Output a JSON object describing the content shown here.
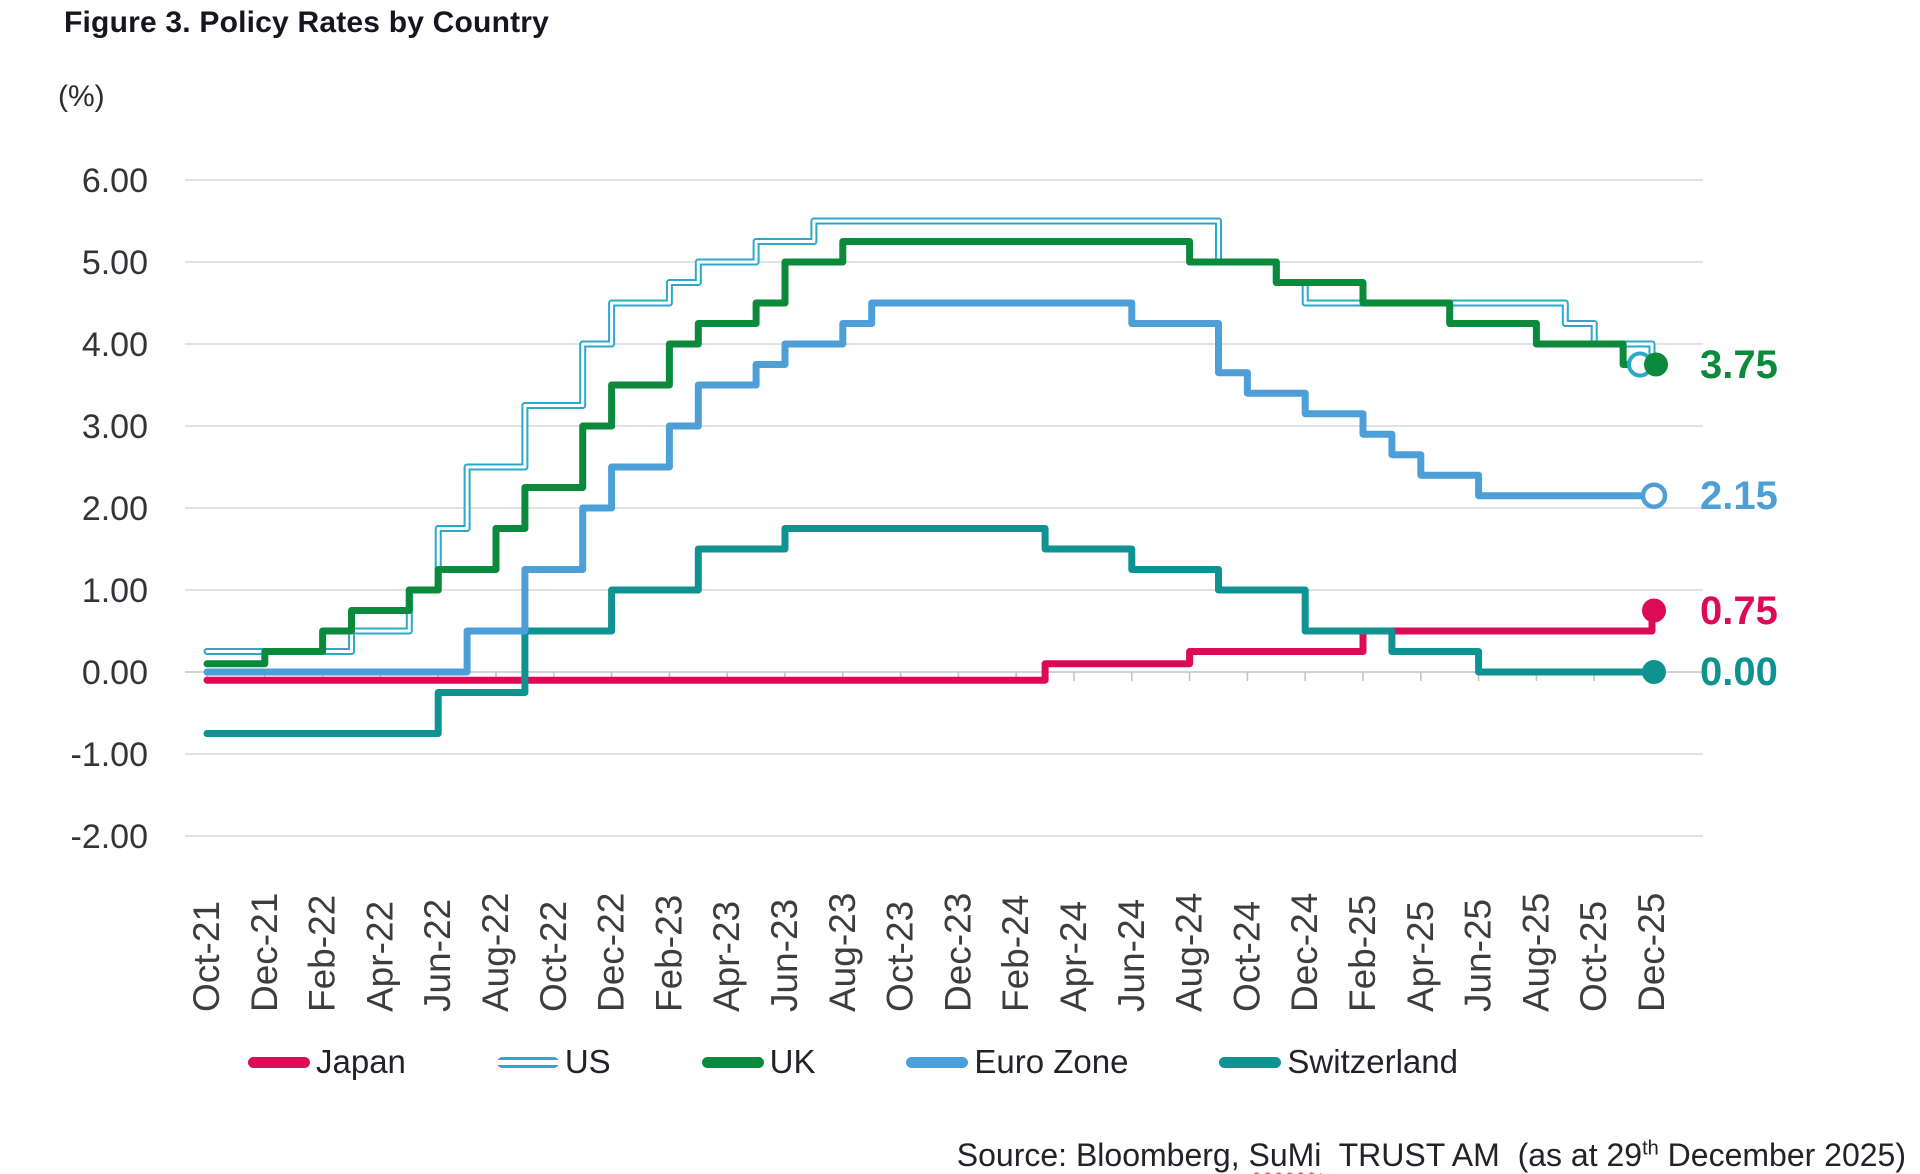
{
  "title": "Figure 3. Policy Rates by Country",
  "y_axis_unit": "(%)",
  "colors": {
    "japan": "#dd0a56",
    "us": "#2aa9c9",
    "uk": "#0a8a3a",
    "euro_zone": "#4d9fd8",
    "switzerland": "#0f9391",
    "grid": "#d9d9d9",
    "axis": "#c4c4c4",
    "tick_text": "#3d3d3d"
  },
  "chart_data": {
    "type": "line",
    "subtype": "step-after",
    "title": "Figure 3. Policy Rates by Country",
    "ylabel": "(%)",
    "ylim": [
      -2.0,
      6.0
    ],
    "grid": "horizontal",
    "legend_position": "bottom",
    "y_tick_labels": [
      "6.00",
      "5.00",
      "4.00",
      "3.00",
      "2.00",
      "1.00",
      "0.00",
      "-1.00",
      "-2.00"
    ],
    "y_tick_values": [
      6,
      5,
      4,
      3,
      2,
      1,
      0,
      -1,
      -2
    ],
    "x_tick_labels": [
      "Oct-21",
      "Dec-21",
      "Feb-22",
      "Apr-22",
      "Jun-22",
      "Aug-22",
      "Oct-22",
      "Dec-22",
      "Feb-23",
      "Apr-23",
      "Jun-23",
      "Aug-23",
      "Oct-23",
      "Dec-23",
      "Feb-24",
      "Apr-24",
      "Jun-24",
      "Aug-24",
      "Oct-24",
      "Dec-24",
      "Feb-25",
      "Apr-25",
      "Jun-25",
      "Aug-25",
      "Oct-25",
      "Dec-25"
    ],
    "x": [
      "Oct-21",
      "Nov-21",
      "Dec-21",
      "Jan-22",
      "Feb-22",
      "Mar-22",
      "Apr-22",
      "May-22",
      "Jun-22",
      "Jul-22",
      "Aug-22",
      "Sep-22",
      "Oct-22",
      "Nov-22",
      "Dec-22",
      "Jan-23",
      "Feb-23",
      "Mar-23",
      "Apr-23",
      "May-23",
      "Jun-23",
      "Jul-23",
      "Aug-23",
      "Sep-23",
      "Oct-23",
      "Nov-23",
      "Dec-23",
      "Jan-24",
      "Feb-24",
      "Mar-24",
      "Apr-24",
      "May-24",
      "Jun-24",
      "Jul-24",
      "Aug-24",
      "Sep-24",
      "Oct-24",
      "Nov-24",
      "Dec-24",
      "Jan-25",
      "Feb-25",
      "Mar-25",
      "Apr-25",
      "May-25",
      "Jun-25",
      "Jul-25",
      "Aug-25",
      "Sep-25",
      "Oct-25",
      "Nov-25",
      "Dec-25"
    ],
    "series": [
      {
        "key": "japan",
        "name": "Japan",
        "style": "solid",
        "end_marker": "filled",
        "end_value_label": "0.75",
        "values": [
          -0.1,
          -0.1,
          -0.1,
          -0.1,
          -0.1,
          -0.1,
          -0.1,
          -0.1,
          -0.1,
          -0.1,
          -0.1,
          -0.1,
          -0.1,
          -0.1,
          -0.1,
          -0.1,
          -0.1,
          -0.1,
          -0.1,
          -0.1,
          -0.1,
          -0.1,
          -0.1,
          -0.1,
          -0.1,
          -0.1,
          -0.1,
          -0.1,
          -0.1,
          0.1,
          0.1,
          0.1,
          0.1,
          0.1,
          0.25,
          0.25,
          0.25,
          0.25,
          0.25,
          0.25,
          0.5,
          0.5,
          0.5,
          0.5,
          0.5,
          0.5,
          0.5,
          0.5,
          0.5,
          0.5,
          0.75
        ]
      },
      {
        "key": "switzerland",
        "name": "Switzerland",
        "style": "solid",
        "end_marker": "filled",
        "end_value_label": "0.00",
        "values": [
          -0.75,
          -0.75,
          -0.75,
          -0.75,
          -0.75,
          -0.75,
          -0.75,
          -0.75,
          -0.25,
          -0.25,
          -0.25,
          0.5,
          0.5,
          0.5,
          1.0,
          1.0,
          1.0,
          1.5,
          1.5,
          1.5,
          1.75,
          1.75,
          1.75,
          1.75,
          1.75,
          1.75,
          1.75,
          1.75,
          1.75,
          1.5,
          1.5,
          1.5,
          1.25,
          1.25,
          1.25,
          1.0,
          1.0,
          1.0,
          0.5,
          0.5,
          0.5,
          0.25,
          0.25,
          0.25,
          0.0,
          0.0,
          0.0,
          0.0,
          0.0,
          0.0,
          0.0
        ]
      },
      {
        "key": "euro_zone",
        "name": "Euro Zone",
        "style": "solid",
        "end_marker": "open",
        "end_value_label": "2.15",
        "values": [
          0.0,
          0.0,
          0.0,
          0.0,
          0.0,
          0.0,
          0.0,
          0.0,
          0.0,
          0.5,
          0.5,
          1.25,
          1.25,
          2.0,
          2.5,
          2.5,
          3.0,
          3.5,
          3.5,
          3.75,
          4.0,
          4.0,
          4.25,
          4.5,
          4.5,
          4.5,
          4.5,
          4.5,
          4.5,
          4.5,
          4.5,
          4.5,
          4.25,
          4.25,
          4.25,
          3.65,
          3.4,
          3.4,
          3.15,
          3.15,
          2.9,
          2.65,
          2.4,
          2.4,
          2.15,
          2.15,
          2.15,
          2.15,
          2.15,
          2.15,
          2.15
        ]
      },
      {
        "key": "us",
        "name": "US",
        "style": "outlined",
        "end_marker": "open",
        "end_value_label": "3.75",
        "values": [
          0.25,
          0.25,
          0.25,
          0.25,
          0.25,
          0.5,
          0.5,
          1.0,
          1.75,
          2.5,
          2.5,
          3.25,
          3.25,
          4.0,
          4.5,
          4.5,
          4.75,
          5.0,
          5.0,
          5.25,
          5.25,
          5.5,
          5.5,
          5.5,
          5.5,
          5.5,
          5.5,
          5.5,
          5.5,
          5.5,
          5.5,
          5.5,
          5.5,
          5.5,
          5.5,
          5.0,
          5.0,
          4.75,
          4.5,
          4.5,
          4.5,
          4.5,
          4.5,
          4.5,
          4.5,
          4.5,
          4.5,
          4.25,
          4.0,
          4.0,
          3.75
        ]
      },
      {
        "key": "uk",
        "name": "UK",
        "style": "solid",
        "end_marker": "filled",
        "end_value_label": "3.75",
        "values": [
          0.1,
          0.1,
          0.25,
          0.25,
          0.5,
          0.75,
          0.75,
          1.0,
          1.25,
          1.25,
          1.75,
          2.25,
          2.25,
          3.0,
          3.5,
          3.5,
          4.0,
          4.25,
          4.25,
          4.5,
          5.0,
          5.0,
          5.25,
          5.25,
          5.25,
          5.25,
          5.25,
          5.25,
          5.25,
          5.25,
          5.25,
          5.25,
          5.25,
          5.25,
          5.0,
          5.0,
          5.0,
          4.75,
          4.75,
          4.75,
          4.5,
          4.5,
          4.5,
          4.25,
          4.25,
          4.25,
          4.0,
          4.0,
          4.0,
          3.75,
          3.75
        ]
      }
    ],
    "end_labels": [
      {
        "text": "3.75",
        "series": "uk",
        "value": 3.75
      },
      {
        "text": "2.15",
        "series": "euro_zone",
        "value": 2.15
      },
      {
        "text": "0.75",
        "series": "japan",
        "value": 0.75
      },
      {
        "text": "0.00",
        "series": "switzerland",
        "value": 0.0
      }
    ]
  },
  "legend": {
    "items": [
      {
        "key": "japan",
        "label": "Japan"
      },
      {
        "key": "us",
        "label": "US"
      },
      {
        "key": "uk",
        "label": "UK"
      },
      {
        "key": "euro_zone",
        "label": "Euro Zone"
      },
      {
        "key": "switzerland",
        "label": "Switzerland"
      }
    ]
  },
  "source": {
    "prefix": "Source: Bloomberg, ",
    "sumi": "SuMi",
    "middle": "  TRUST AM  (as at 29",
    "superscript": "th",
    "suffix": " December 2025)"
  }
}
